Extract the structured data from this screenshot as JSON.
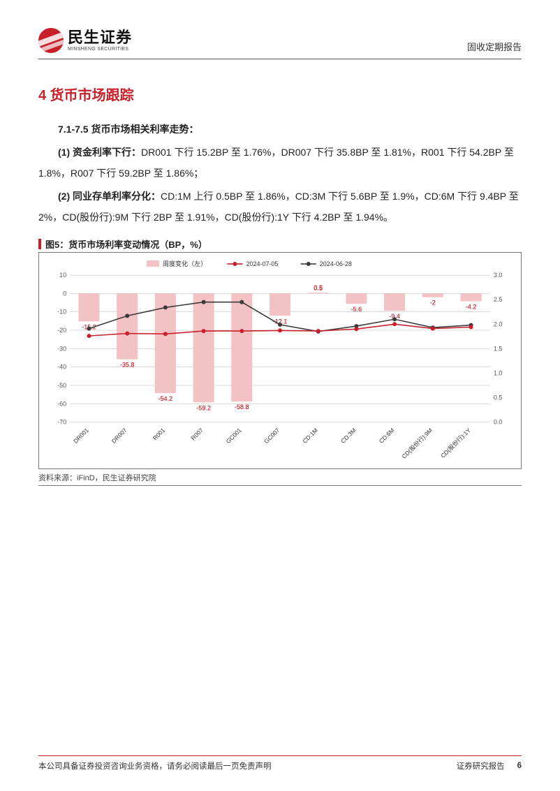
{
  "header": {
    "brand_cn": "民生证券",
    "brand_en": "MINSHENG SECURITIES",
    "right": "固收定期报告"
  },
  "section": {
    "title": "4 货币市场跟踪",
    "intro": "7.1-7.5 货币市场相关利率走势：",
    "p1_label": "(1) 资金利率下行：",
    "p1_body": "DR001 下行 15.2BP 至 1.76%，DR007 下行 35.8BP 至 1.81%，R001 下行 54.2BP 至 1.8%，R007 下行 59.2BP 至 1.86%；",
    "p2_label": "(2) 同业存单利率分化：",
    "p2_body": "CD:1M 上行 0.5BP 至 1.86%，CD:3M 下行 5.6BP 至 1.9%，CD:6M 下行 9.4BP 至 2%，CD(股份行):9M 下行 2BP 至 1.91%，CD(股份行):1Y 下行 4.2BP 至 1.94%。"
  },
  "figure": {
    "title": "图5：货币市场利率变动情况（BP，%）",
    "source": "资料来源：iFinD，民生证券研究院",
    "legend": {
      "bar": "周度变化（左）",
      "line1": "2024-07-05",
      "line2": "2024-06-28"
    },
    "chart": {
      "type": "combo-bar-two-lines",
      "background_color": "#ffffff",
      "grid_color": "#b7b7b7",
      "grid_width": 0.5,
      "bar_color": "#f3c2c4",
      "bar_width": 0.55,
      "label_color": "#c8202a",
      "label_fontsize": 9,
      "line1_color": "#c8202a",
      "line1_marker": "circle",
      "line2_color": "#3b3b3b",
      "line2_marker": "circle",
      "line_width": 1.6,
      "marker_size": 3,
      "axis_fontsize": 9,
      "category_fontsize": 8.5,
      "category_rotation": -45,
      "y_left": {
        "min": -70,
        "max": 10,
        "step": 10
      },
      "y_right": {
        "min": 0.0,
        "max": 3.0,
        "step": 0.5
      },
      "categories": [
        "DR001",
        "DR007",
        "R001",
        "R007",
        "GC001",
        "GC007",
        "CD:1M",
        "CD:3M",
        "CD:6M",
        "CD(股份行):9M",
        "CD(股份行):1Y"
      ],
      "bar_values": [
        -15.2,
        -35.8,
        -54.2,
        -59.2,
        -58.8,
        -12.1,
        0.5,
        -5.6,
        -9.4,
        -2.0,
        -4.2
      ],
      "line1_values": [
        1.76,
        1.81,
        1.8,
        1.86,
        1.86,
        1.87,
        1.86,
        1.9,
        2.0,
        1.91,
        1.94
      ],
      "line2_values": [
        1.91,
        2.17,
        2.34,
        2.45,
        2.45,
        1.99,
        1.85,
        1.96,
        2.1,
        1.93,
        1.98
      ]
    }
  },
  "footer": {
    "left": "本公司具备证券投资咨询业务资格，请务必阅读最后一页免责声明",
    "right": "证券研究报告",
    "page": "6"
  }
}
